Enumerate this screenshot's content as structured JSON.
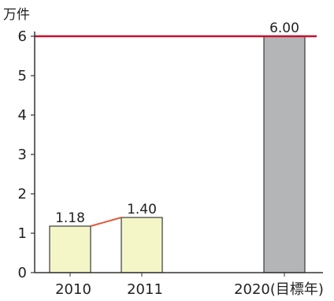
{
  "chart_data": {
    "type": "bar",
    "unit": "万件",
    "categories": [
      "2010",
      "2011",
      "2020(目標年)"
    ],
    "values": [
      1.18,
      1.4,
      6.0
    ],
    "data_labels": [
      "1.18",
      "1.40",
      "6.00"
    ],
    "y_ticks": [
      "0",
      "1",
      "2",
      "3",
      "4",
      "5",
      "6"
    ],
    "ylim": [
      0,
      6
    ],
    "target_line_value": 6,
    "grid": false,
    "colors": {
      "actual_bar": "#f4f6c8",
      "target_bar": "#b3b5b7",
      "target_line": "#c8102e",
      "connector": "#e05a3a",
      "axis": "#333333"
    }
  }
}
